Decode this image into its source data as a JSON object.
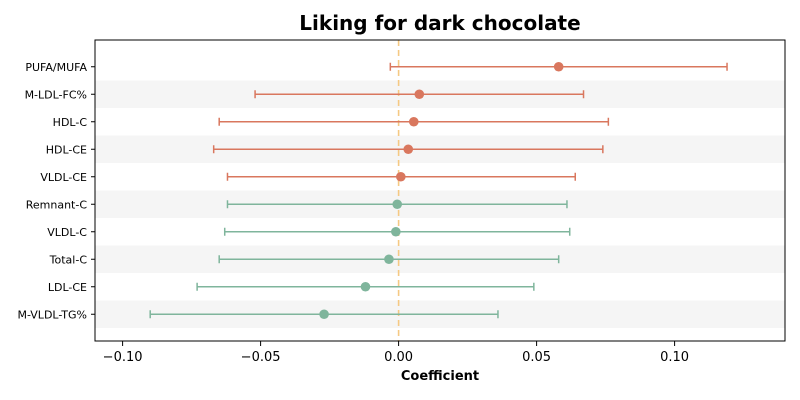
{
  "chart_data": {
    "type": "forest",
    "title": "Liking for dark chocolate",
    "xlabel": "Coefficient",
    "xlim": [
      -0.11,
      0.14
    ],
    "xticks": [
      -0.1,
      -0.05,
      0.0,
      0.05,
      0.1
    ],
    "xtick_labels": [
      "−0.10",
      "−0.05",
      "0.00",
      "0.05",
      "0.10"
    ],
    "reference_line": 0.0,
    "reference_line_color": "#f5c983",
    "positive_color": "#d9775e",
    "negative_color": "#7fb59c",
    "stripe_color": "#f5f5f5",
    "rows": [
      {
        "label": "PUFA/MUFA",
        "coef": 0.058,
        "lo": -0.003,
        "hi": 0.119
      },
      {
        "label": "M-LDL-FC%",
        "coef": 0.0075,
        "lo": -0.052,
        "hi": 0.067
      },
      {
        "label": "HDL-C",
        "coef": 0.0055,
        "lo": -0.065,
        "hi": 0.076
      },
      {
        "label": "HDL-CE",
        "coef": 0.0035,
        "lo": -0.067,
        "hi": 0.074
      },
      {
        "label": "VLDL-CE",
        "coef": 0.0008,
        "lo": -0.062,
        "hi": 0.064
      },
      {
        "label": "Remnant-C",
        "coef": -0.0005,
        "lo": -0.062,
        "hi": 0.061
      },
      {
        "label": "VLDL-C",
        "coef": -0.001,
        "lo": -0.063,
        "hi": 0.062
      },
      {
        "label": "Total-C",
        "coef": -0.0035,
        "lo": -0.065,
        "hi": 0.058
      },
      {
        "label": "LDL-CE",
        "coef": -0.012,
        "lo": -0.073,
        "hi": 0.049
      },
      {
        "label": "M-VLDL-TG%",
        "coef": -0.027,
        "lo": -0.09,
        "hi": 0.036
      }
    ]
  }
}
